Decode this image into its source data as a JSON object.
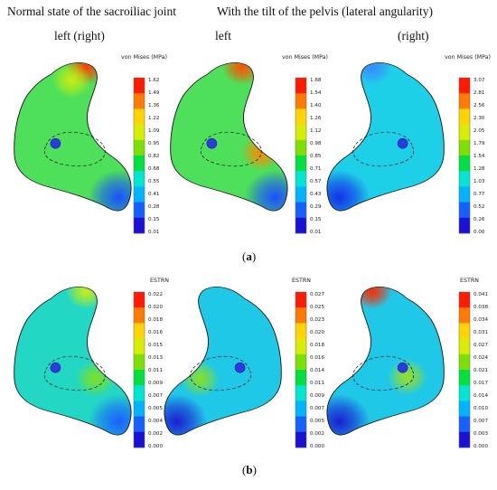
{
  "headers": {
    "normal_state": "Normal state of the sacroiliac joint",
    "with_tilt": "With the tilt of the pelvis (lateral angularity)",
    "left_right": "left (right)",
    "left": "left",
    "right": "(right)"
  },
  "captions": {
    "a": "a",
    "b": "b"
  },
  "colors": {
    "scale": [
      "#1a10d8",
      "#1560ff",
      "#00b4ff",
      "#00e6d0",
      "#00e040",
      "#7ee000",
      "#d8ee00",
      "#ffd400",
      "#ff7a00",
      "#ff1a00"
    ],
    "outline": "#111111",
    "pin": "#2a3ce0"
  },
  "panels": [
    {
      "id": "a-normal",
      "scale_title": "von Mises (MPa)",
      "ticks": [
        "1.62",
        "1.49",
        "1.36",
        "1.22",
        "1.09",
        "0.95",
        "0.82",
        "0.68",
        "0.55",
        "0.41",
        "0.28",
        "0.15",
        "0.01"
      ],
      "base_color": "#4ee05a",
      "spots": [
        {
          "at": "top-tip",
          "color": "#ff3a00"
        },
        {
          "at": "lower-tip",
          "color": "#1a50ff"
        },
        {
          "at": "upper-mid",
          "color": "#c8ee10"
        }
      ]
    },
    {
      "id": "a-left",
      "scale_title": "von Mises (MPa)",
      "ticks": [
        "1.68",
        "1.54",
        "1.40",
        "1.26",
        "1.12",
        "0.98",
        "0.85",
        "0.71",
        "0.57",
        "0.43",
        "0.29",
        "0.15",
        "0.01"
      ],
      "base_color": "#4ee05a",
      "spots": [
        {
          "at": "top-tip",
          "color": "#ff5000"
        },
        {
          "at": "right-mid",
          "color": "#ff8a00"
        },
        {
          "at": "lower-tip",
          "color": "#1a50ff"
        }
      ]
    },
    {
      "id": "a-right",
      "scale_title": "von Mises (MPa)",
      "ticks": [
        "3.07",
        "2.81",
        "2.56",
        "2.30",
        "2.05",
        "1.79",
        "1.54",
        "1.28",
        "1.03",
        "0.77",
        "0.52",
        "0.26",
        "0.00"
      ],
      "base_color": "#1ecfe8",
      "spots": [
        {
          "at": "lower-tip",
          "color": "#1430e8"
        },
        {
          "at": "top-tip",
          "color": "#3a8aff"
        }
      ]
    },
    {
      "id": "b-normal",
      "scale_title": "ESTRN",
      "ticks": [
        "0.022",
        "0.020",
        "0.018",
        "0.016",
        "0.015",
        "0.013",
        "0.011",
        "0.009",
        "0.007",
        "0.005",
        "0.004",
        "0.002",
        "0.000"
      ],
      "base_color": "#22d8c4",
      "spots": [
        {
          "at": "top-tip",
          "color": "#c8ee10"
        },
        {
          "at": "lower-tip",
          "color": "#1a60ff"
        },
        {
          "at": "ellipse-right",
          "color": "#7ee020"
        }
      ]
    },
    {
      "id": "b-left",
      "scale_title": "ESTRN",
      "ticks": [
        "0.027",
        "0.025",
        "0.023",
        "0.020",
        "0.018",
        "0.016",
        "0.014",
        "0.011",
        "0.009",
        "0.007",
        "0.005",
        "0.002",
        "0.000"
      ],
      "base_color": "#20c8e8",
      "spots": [
        {
          "at": "lower-tip",
          "color": "#1a20d0"
        },
        {
          "at": "ellipse-right",
          "color": "#8ae020"
        }
      ]
    },
    {
      "id": "b-right",
      "scale_title": "ESTRN",
      "ticks": [
        "0.041",
        "0.038",
        "0.034",
        "0.031",
        "0.027",
        "0.024",
        "0.021",
        "0.017",
        "0.014",
        "0.010",
        "0.007",
        "0.003",
        "0.000"
      ],
      "base_color": "#20c8e8",
      "spots": [
        {
          "at": "top-tip",
          "color": "#ff2a00"
        },
        {
          "at": "lower-tip",
          "color": "#1a20d0"
        },
        {
          "at": "ellipse-left",
          "color": "#9ae020"
        }
      ]
    }
  ]
}
